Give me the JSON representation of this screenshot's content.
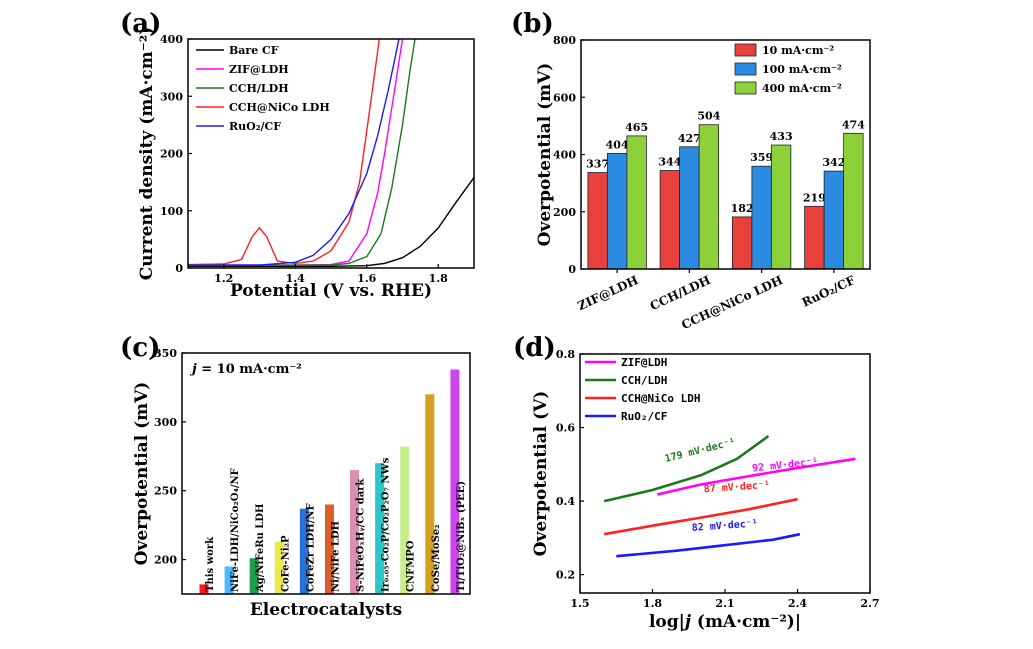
{
  "chart_data": [
    {
      "panel": "(a)",
      "type": "line",
      "xlabel": "Potential (V vs. RHE)",
      "ylabel": "Current density (mA·cm⁻²)",
      "xlim": [
        1.1,
        1.9
      ],
      "ylim": [
        0,
        400
      ],
      "xticks": [
        1.2,
        1.4,
        1.6,
        1.8
      ],
      "yticks": [
        0,
        100,
        200,
        300,
        400
      ],
      "legend_position": "top-left",
      "series": [
        {
          "name": "Bare CF",
          "color": "#000000",
          "points": [
            [
              1.1,
              3
            ],
            [
              1.2,
              3
            ],
            [
              1.3,
              3
            ],
            [
              1.4,
              3
            ],
            [
              1.5,
              3
            ],
            [
              1.6,
              4
            ],
            [
              1.65,
              8
            ],
            [
              1.7,
              18
            ],
            [
              1.75,
              38
            ],
            [
              1.8,
              70
            ],
            [
              1.85,
              115
            ],
            [
              1.9,
              158
            ]
          ]
        },
        {
          "name": "ZIF@LDH",
          "color": "#ff00ff",
          "points": [
            [
              1.1,
              5
            ],
            [
              1.4,
              5
            ],
            [
              1.5,
              6
            ],
            [
              1.55,
              12
            ],
            [
              1.6,
              60
            ],
            [
              1.63,
              130
            ],
            [
              1.65,
              200
            ],
            [
              1.68,
              320
            ],
            [
              1.7,
              400
            ]
          ]
        },
        {
          "name": "CCH/LDH",
          "color": "#1a7a1a",
          "points": [
            [
              1.1,
              5
            ],
            [
              1.4,
              5
            ],
            [
              1.5,
              5
            ],
            [
              1.55,
              8
            ],
            [
              1.6,
              20
            ],
            [
              1.64,
              60
            ],
            [
              1.67,
              140
            ],
            [
              1.7,
              250
            ],
            [
              1.72,
              340
            ],
            [
              1.735,
              400
            ]
          ]
        },
        {
          "name": "CCH@NiCo LDH",
          "color": "#ff2020",
          "points": [
            [
              1.1,
              6
            ],
            [
              1.2,
              7
            ],
            [
              1.25,
              15
            ],
            [
              1.28,
              55
            ],
            [
              1.3,
              70
            ],
            [
              1.32,
              55
            ],
            [
              1.35,
              12
            ],
            [
              1.4,
              8
            ],
            [
              1.45,
              12
            ],
            [
              1.5,
              30
            ],
            [
              1.55,
              80
            ],
            [
              1.58,
              150
            ],
            [
              1.6,
              240
            ],
            [
              1.62,
              330
            ],
            [
              1.635,
              400
            ]
          ]
        },
        {
          "name": "RuO₂/CF",
          "color": "#1a1aff",
          "points": [
            [
              1.1,
              5
            ],
            [
              1.3,
              5
            ],
            [
              1.4,
              10
            ],
            [
              1.45,
              22
            ],
            [
              1.5,
              50
            ],
            [
              1.55,
              95
            ],
            [
              1.6,
              165
            ],
            [
              1.63,
              230
            ],
            [
              1.66,
              310
            ],
            [
              1.68,
              370
            ],
            [
              1.69,
              400
            ]
          ]
        }
      ]
    },
    {
      "panel": "(b)",
      "type": "bar",
      "ylabel": "Overpotential (mV)",
      "ylim": [
        0,
        800
      ],
      "yticks": [
        0,
        200,
        400,
        600,
        800
      ],
      "categories": [
        "ZIF@LDH",
        "CCH/LDH",
        "CCH@NiCo LDH",
        "RuO₂/CF"
      ],
      "legend_position": "top-right",
      "series": [
        {
          "name": "10 mA·cm⁻²",
          "color": "#e8413b",
          "values": [
            337,
            344,
            182,
            219
          ]
        },
        {
          "name": "100 mA·cm⁻²",
          "color": "#2a8be0",
          "values": [
            404,
            427,
            359,
            342
          ]
        },
        {
          "name": "400 mA·cm⁻²",
          "color": "#8dd13a",
          "values": [
            465,
            504,
            433,
            474
          ]
        }
      ]
    },
    {
      "panel": "(c)",
      "type": "bar",
      "xlabel": "Electrocatalysts",
      "ylabel": "Overpotential (mV)",
      "ylim": [
        175,
        350
      ],
      "yticks": [
        200,
        250,
        300,
        350
      ],
      "annotation_j": "j",
      "annotation_rest": " = 10 mA·cm⁻²",
      "categories": [
        "This work",
        "NiFe-LDH/NiCo₂O₄/NF",
        "Ag/NiFeRu LDH",
        "CoFe-Ni₂P",
        "CoFeZr LDH/NF",
        "Ni/NiFe LDH",
        "S-NiFeOₓHᵧ/CC dark",
        "Ir₀.₀₅-Co₂P/Co₂P₂O₇ NWs",
        "CNFMPO",
        "CoSe/MoSe₂",
        "Ti/TiO₂@NiBₓ (PEE)"
      ],
      "values": [
        182,
        195,
        201,
        213,
        237,
        240,
        265,
        270,
        282,
        320,
        338
      ],
      "colors": [
        "#ff1a1a",
        "#4db8ff",
        "#1a9e4a",
        "#e8e84a",
        "#2a6fd4",
        "#d9602a",
        "#d98fb0",
        "#2ac8c8",
        "#c8ee8a",
        "#d4a020",
        "#cc44ee"
      ]
    },
    {
      "panel": "(d)",
      "type": "line",
      "xlabel_pre": "log|",
      "xlabel_j": "j",
      "xlabel_post": " (mA·cm⁻²)|",
      "ylabel": "Overpotential (V)",
      "xlim": [
        1.5,
        2.7
      ],
      "ylim": [
        0.15,
        0.8
      ],
      "xticks": [
        1.5,
        1.8,
        2.1,
        2.4,
        2.7
      ],
      "yticks": [
        0.2,
        0.4,
        0.6,
        0.8
      ],
      "legend_position": "top-left",
      "series": [
        {
          "name": "ZIF@LDH",
          "color": "#ff00ff",
          "slope_label": "92 mV·dec⁻¹",
          "points": [
            [
              1.82,
              0.418
            ],
            [
              2.0,
              0.445
            ],
            [
              2.2,
              0.468
            ],
            [
              2.4,
              0.49
            ],
            [
              2.64,
              0.515
            ]
          ]
        },
        {
          "name": "CCH/LDH",
          "color": "#1a7a1a",
          "slope_label": "179 mV·dec⁻¹",
          "points": [
            [
              1.6,
              0.4
            ],
            [
              1.8,
              0.43
            ],
            [
              2.0,
              0.47
            ],
            [
              2.15,
              0.515
            ],
            [
              2.28,
              0.577
            ]
          ]
        },
        {
          "name": "CCH@NiCo LDH",
          "color": "#ff2020",
          "slope_label": "87 mV·dec⁻¹",
          "points": [
            [
              1.6,
              0.31
            ],
            [
              1.8,
              0.333
            ],
            [
              2.0,
              0.355
            ],
            [
              2.2,
              0.378
            ],
            [
              2.4,
              0.405
            ]
          ]
        },
        {
          "name": "RuO₂/CF",
          "color": "#1a1aff",
          "slope_label": "82 mV·dec⁻¹",
          "points": [
            [
              1.65,
              0.25
            ],
            [
              1.9,
              0.265
            ],
            [
              2.1,
              0.28
            ],
            [
              2.3,
              0.295
            ],
            [
              2.41,
              0.31
            ]
          ]
        }
      ]
    }
  ]
}
